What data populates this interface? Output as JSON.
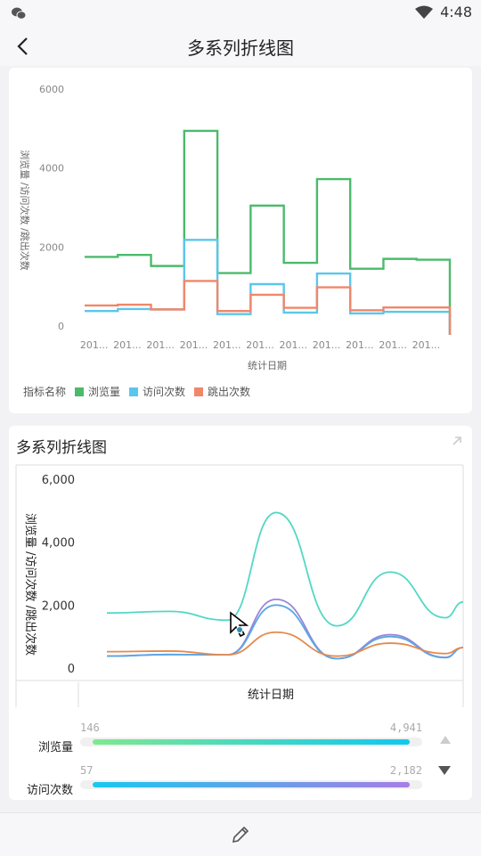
{
  "status": {
    "time": "4:48",
    "icons": [
      "wechat-icon",
      "wifi-icon"
    ]
  },
  "nav": {
    "title": "多系列折线图",
    "back_icon": "chevron-left-icon"
  },
  "chart_data": [
    {
      "type": "line",
      "style": "step",
      "title": "",
      "xlabel": "统计日期",
      "ylabel": "浏览量 /访问次数 /跳出次数",
      "ylim": [
        0,
        6000
      ],
      "yticks": [
        "6000",
        "4000",
        "2000",
        "0"
      ],
      "categories": [
        "201...",
        "201...",
        "201...",
        "201...",
        "201...",
        "201...",
        "201...",
        "201...",
        "201...",
        "201...",
        "201..."
      ],
      "legend_title": "指标名称",
      "legend_position": "bottom-left",
      "series": [
        {
          "name": "浏览量",
          "color": "#4cba6b",
          "values": [
            1750,
            1800,
            1520,
            4941,
            1340,
            3050,
            1600,
            3720,
            1450,
            1700,
            1680
          ]
        },
        {
          "name": "访问次数",
          "color": "#5bc6ec",
          "values": [
            380,
            430,
            420,
            2182,
            300,
            1060,
            340,
            1330,
            320,
            360,
            360
          ]
        },
        {
          "name": "跳出次数",
          "color": "#f0876a",
          "values": [
            520,
            540,
            420,
            1140,
            380,
            790,
            460,
            980,
            400,
            470,
            470
          ]
        }
      ]
    },
    {
      "type": "line",
      "style": "smooth",
      "title": "多系列折线图",
      "xlabel": "统计日期",
      "ylabel": "浏览量 /访问次数 /跳出次数",
      "ylim": [
        0,
        6000
      ],
      "yticks": [
        "6,000",
        "4,000",
        "2,000",
        "0"
      ],
      "series": [
        {
          "color": "#52d8c5",
          "values": [
            1750,
            1800,
            1520,
            4941,
            1340,
            3050,
            1600,
            2100
          ]
        },
        {
          "color": "#9a86d9",
          "values": [
            380,
            430,
            420,
            2182,
            300,
            1060,
            340,
            650
          ]
        },
        {
          "color": "#5aa7e3",
          "values": [
            380,
            430,
            420,
            2000,
            300,
            1000,
            330,
            650
          ]
        },
        {
          "color": "#e58a4e",
          "values": [
            520,
            540,
            420,
            1140,
            380,
            790,
            460,
            650
          ]
        }
      ]
    }
  ],
  "legend": {
    "title": "指标名称",
    "items": [
      {
        "label": "浏览量",
        "color": "#4cba6b"
      },
      {
        "label": "访问次数",
        "color": "#5bc6ec"
      },
      {
        "label": "跳出次数",
        "color": "#f0876a"
      }
    ]
  },
  "card2": {
    "title": "多系列折线图",
    "expand_icon": "expand-arrow-icon"
  },
  "filters": [
    {
      "label": "浏览量",
      "min": "146",
      "max": "4,941",
      "gradient": [
        "#7ee88f",
        "#10c8f0"
      ],
      "fraction": 1.0
    },
    {
      "label": "访问次数",
      "min": "57",
      "max": "2,182",
      "gradient": [
        "#18c8ef",
        "#a77de6"
      ],
      "fraction": 1.0
    }
  ],
  "bottom": {
    "edit_icon": "pencil-icon"
  }
}
